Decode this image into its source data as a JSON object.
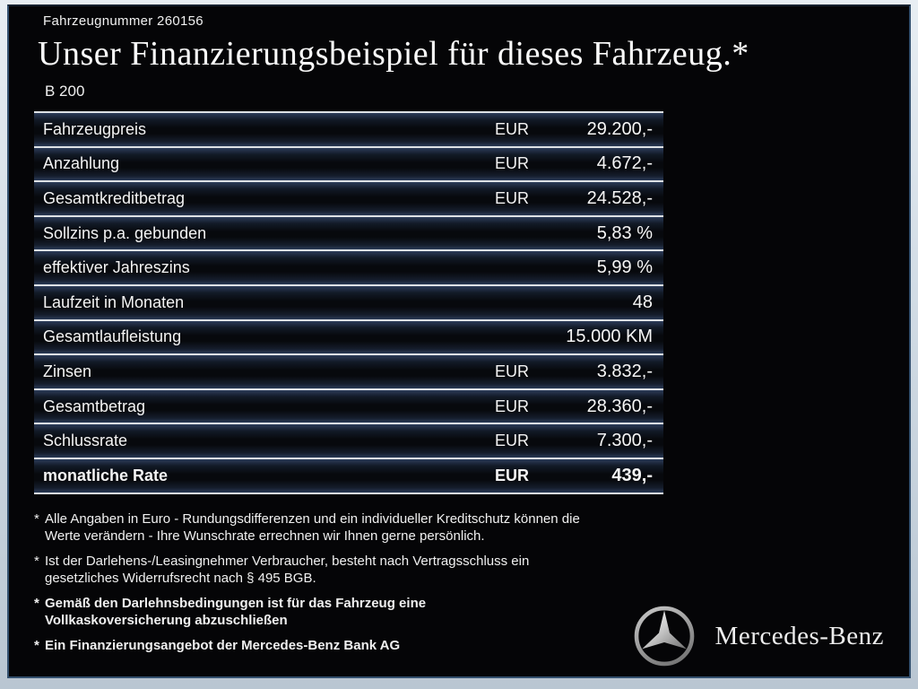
{
  "header": {
    "vehicle_number": "Fahrzeugnummer 260156",
    "title": "Unser Finanzierungsbeispiel für dieses Fahrzeug.*",
    "model": "B 200"
  },
  "table": {
    "rows": [
      {
        "label": "Fahrzeugpreis",
        "currency": "EUR",
        "value": "29.200,-",
        "bold": false
      },
      {
        "label": "Anzahlung",
        "currency": "EUR",
        "value": "4.672,-",
        "bold": false
      },
      {
        "label": "Gesamtkreditbetrag",
        "currency": "EUR",
        "value": "24.528,-",
        "bold": false
      },
      {
        "label": "Sollzins p.a. gebunden",
        "currency": "",
        "value": "5,83 %",
        "bold": false
      },
      {
        "label": "effektiver Jahreszins",
        "currency": "",
        "value": "5,99 %",
        "bold": false
      },
      {
        "label": "Laufzeit in Monaten",
        "currency": "",
        "value": "48",
        "bold": false
      },
      {
        "label": "Gesamtlaufleistung",
        "currency": "",
        "value": "15.000 KM",
        "bold": false
      },
      {
        "label": "Zinsen",
        "currency": "EUR",
        "value": "3.832,-",
        "bold": false
      },
      {
        "label": "Gesamtbetrag",
        "currency": "EUR",
        "value": "28.360,-",
        "bold": false
      },
      {
        "label": "Schlussrate",
        "currency": "EUR",
        "value": "7.300,-",
        "bold": false
      },
      {
        "label": "monatliche Rate",
        "currency": "EUR",
        "value": "439,-",
        "bold": true
      }
    ]
  },
  "footnotes": [
    {
      "marker": "*",
      "bold": false,
      "lines": [
        "Alle Angaben in Euro - Rundungsdifferenzen und ein individueller Kreditschutz können die",
        "Werte verändern - Ihre Wunschrate errechnen wir Ihnen gerne persönlich."
      ]
    },
    {
      "marker": "*",
      "bold": false,
      "lines": [
        "Ist der Darlehens-/Leasingnehmer Verbraucher, besteht nach Vertragsschluss ein",
        "gesetzliches Widerrufsrecht nach § 495 BGB."
      ]
    },
    {
      "marker": "*",
      "bold": true,
      "lines": [
        "Gemäß den Darlehnsbedingungen ist für das Fahrzeug eine",
        "Vollkaskoversicherung abzuschließen"
      ]
    },
    {
      "marker": "*",
      "bold": true,
      "lines": [
        "Ein Finanzierungsangebot der Mercedes-Benz Bank AG"
      ]
    }
  ],
  "brand": {
    "logo_icon": "mercedes-star-icon",
    "wordmark": "Mercedes-Benz"
  },
  "colors": {
    "slide_background": "#050507",
    "frame_light": "#d3dde6",
    "frame_border_blue": "#33506e",
    "row_line": "#dde1e5",
    "row_glow_navy": "#2c3c59",
    "text": "#f2f2f2"
  }
}
